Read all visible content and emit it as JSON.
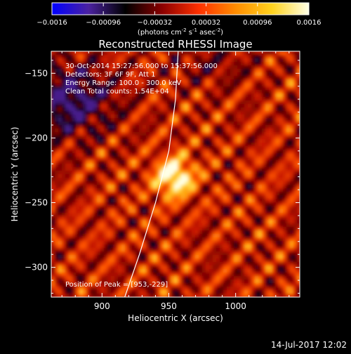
{
  "colorbar": {
    "ticks": [
      "-0.0016",
      "-0.00096",
      "-0.00032",
      "0.00032",
      "0.00096",
      "0.0016"
    ],
    "units_main": "(photons cm",
    "units_exp1": "-2",
    "units_s": " s",
    "units_exp2": "-1",
    "units_asec": " asec",
    "units_exp3": "-2",
    "units_close": ")",
    "colors": [
      "#0000ff",
      "#4b22a0",
      "#000000",
      "#8b0000",
      "#ff3000",
      "#ff8c00",
      "#ffd21e",
      "#ffffe6"
    ]
  },
  "title": "Reconstructed RHESSI Image",
  "info": {
    "line1": "30-Oct-2014 15:27:56.000 to 15:37:56.000",
    "line2": "Detectors: 3F 6F 9F, Att 1",
    "line3": "Energy Range: 100.0 - 300.0 keV",
    "line4": "Clean     Total counts: 1.54E+04",
    "peak": "Position of Peak = [953,-229]"
  },
  "footer": {
    "date": "14-Jul-2017 12:02"
  },
  "chart_data": {
    "type": "heatmap",
    "title": "Reconstructed RHESSI Image",
    "xlabel": "Heliocentric X (arcsec)",
    "ylabel": "Heliocentric Y (arcsec)",
    "xlim": [
      862,
      1048
    ],
    "ylim": [
      -323,
      -133
    ],
    "x_ticks": [
      900,
      950,
      1000
    ],
    "y_ticks": [
      -150,
      -200,
      -250,
      -300
    ],
    "x_tick_labels": [
      "900",
      "950",
      "1000"
    ],
    "y_tick_labels": [
      "−150",
      "−200",
      "−250",
      "−300"
    ],
    "colorbar_range": [
      -0.0016,
      0.0016
    ],
    "peak": [
      953,
      -229
    ],
    "limb": [
      [
        957,
        -133
      ],
      [
        955,
        -170
      ],
      [
        950,
        -210
      ],
      [
        940,
        -250
      ],
      [
        928,
        -290
      ],
      [
        917,
        -323
      ]
    ]
  }
}
